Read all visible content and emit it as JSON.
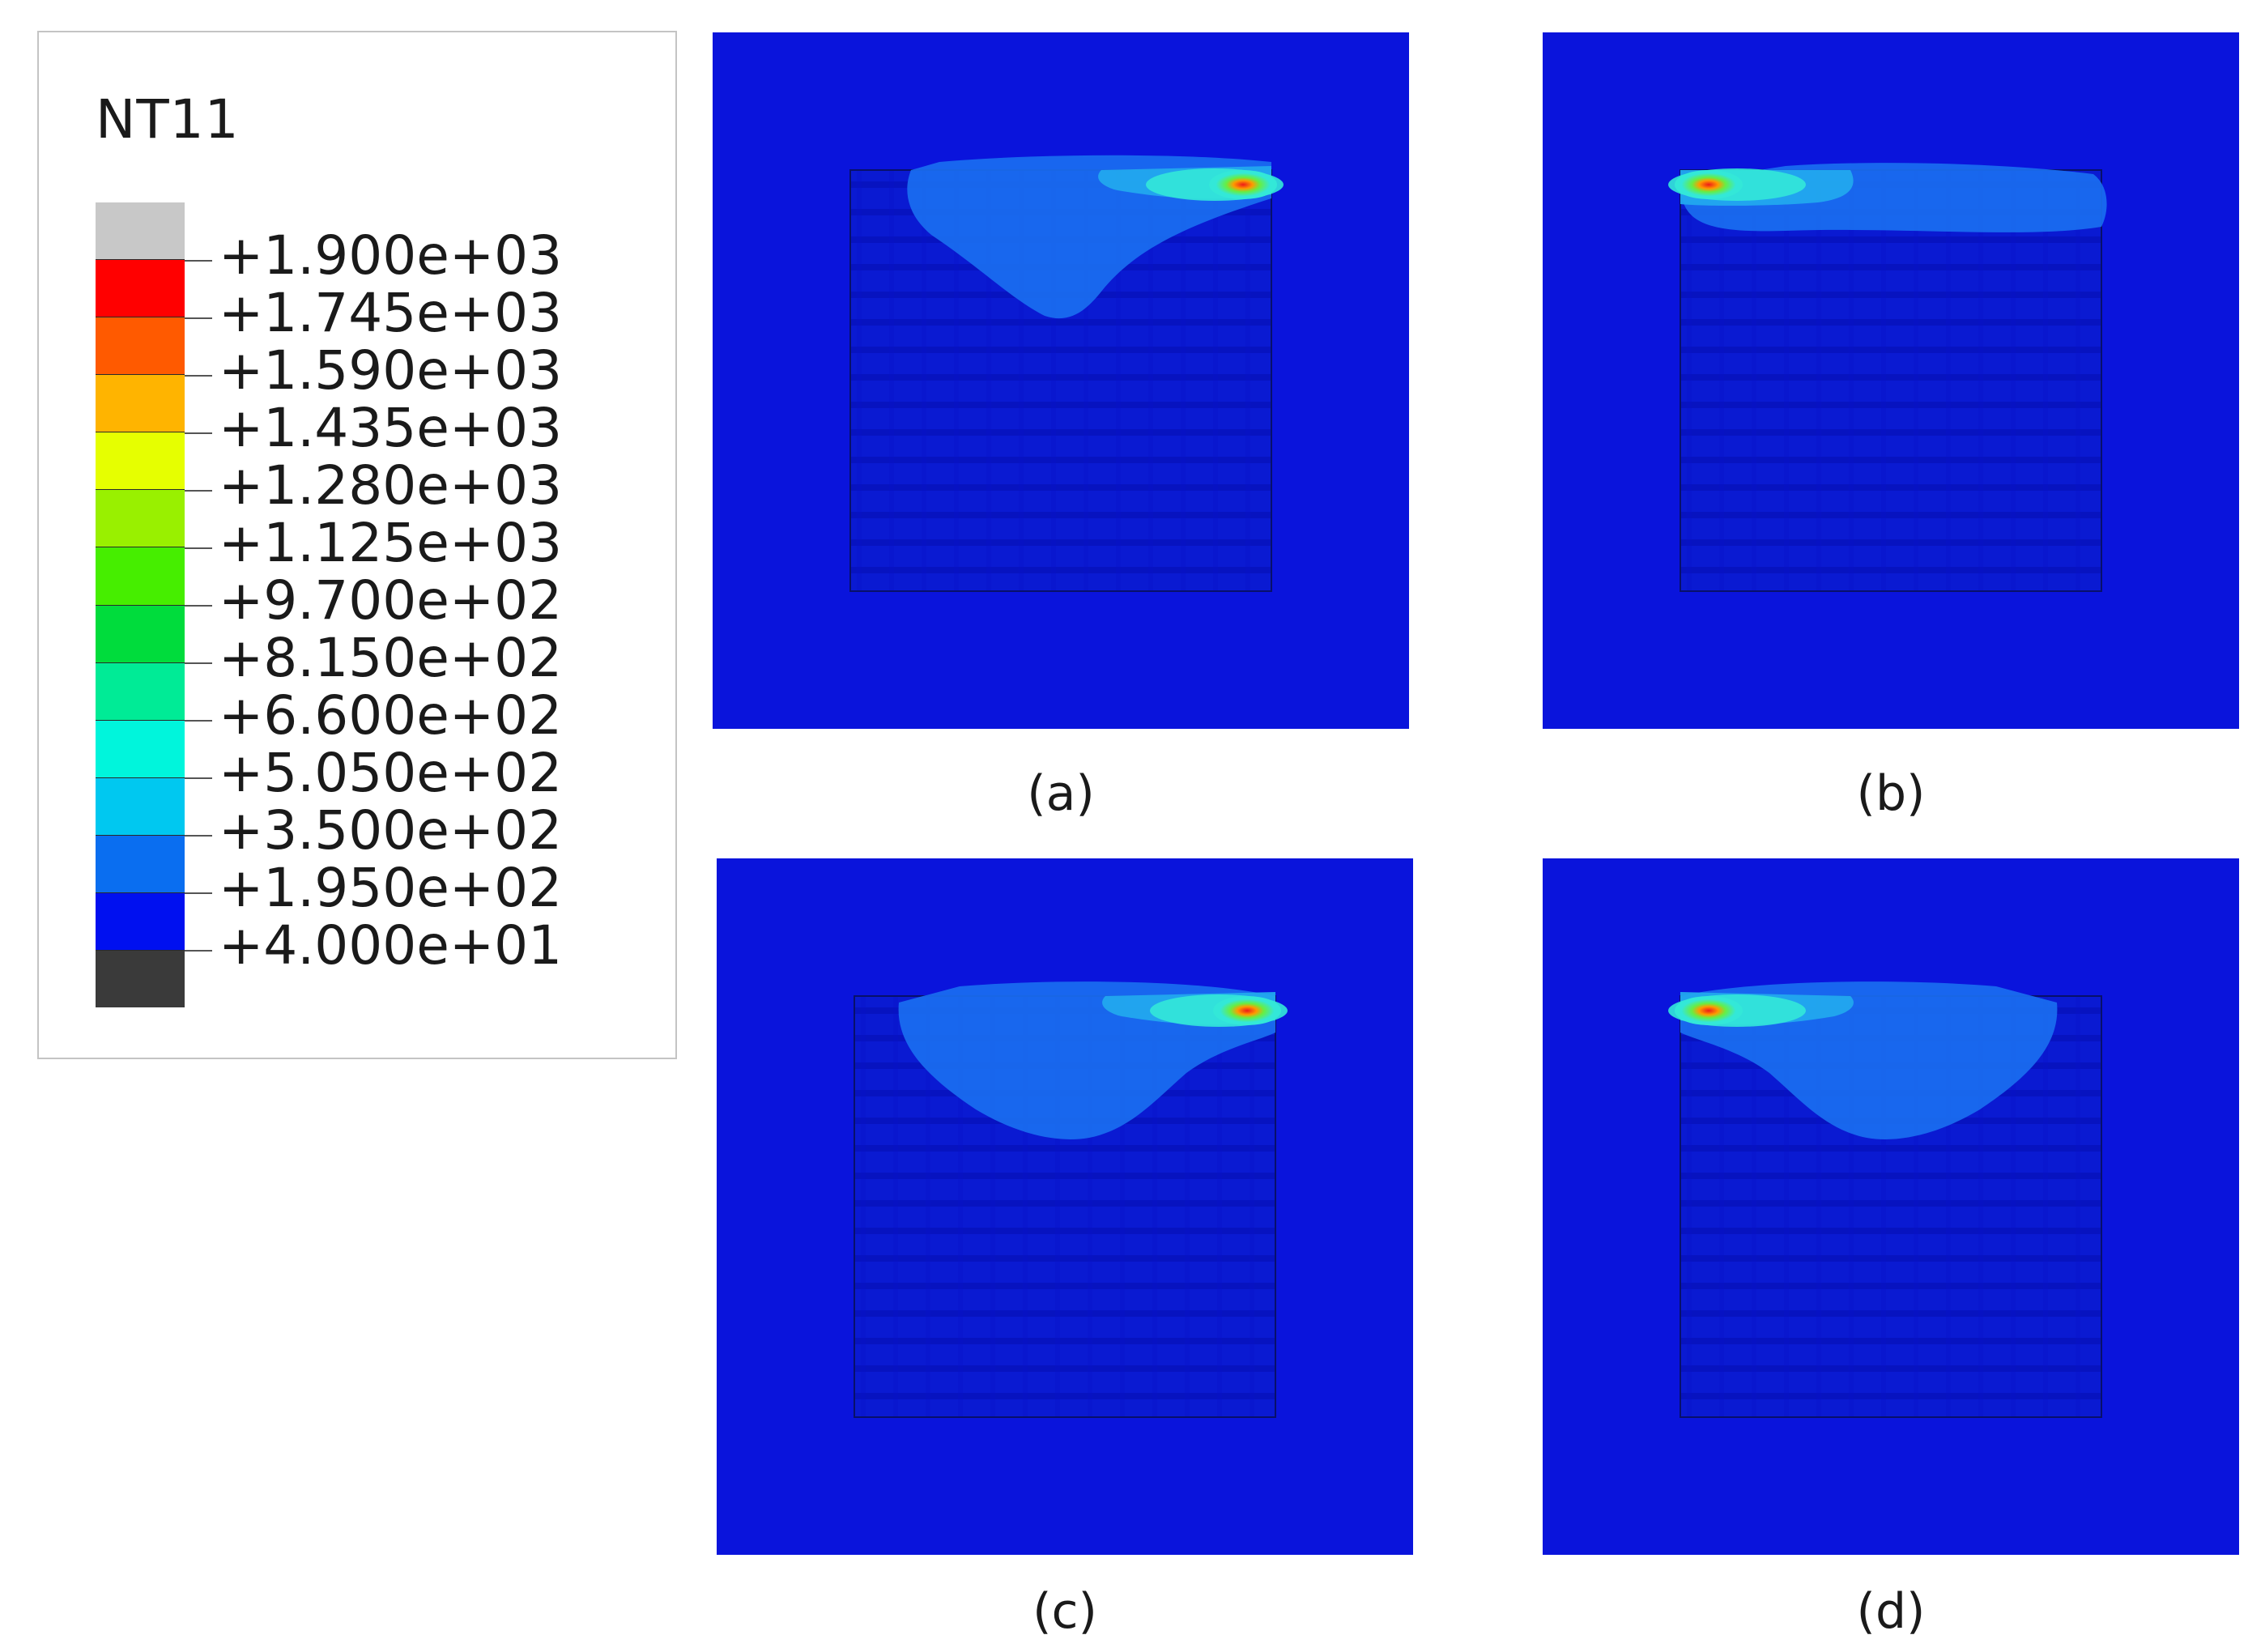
{
  "legend": {
    "title": "NT11",
    "bands": [
      "#c8c8c8",
      "#ff0000",
      "#ff5a00",
      "#ffb400",
      "#e6ff00",
      "#99f000",
      "#46ee00",
      "#00dc3c",
      "#00eb96",
      "#00f5dc",
      "#00c8f0",
      "#0a6ef0",
      "#0010f0",
      "#3a3a3a"
    ],
    "ticks": [
      "+1.900e+03",
      "+1.745e+03",
      "+1.590e+03",
      "+1.435e+03",
      "+1.280e+03",
      "+1.125e+03",
      "+9.700e+02",
      "+8.150e+02",
      "+6.600e+02",
      "+5.050e+02",
      "+3.500e+02",
      "+1.950e+02",
      "+4.000e+01"
    ]
  },
  "panels": [
    {
      "id": "a",
      "caption": "(a)",
      "hotspot": "right"
    },
    {
      "id": "b",
      "caption": "(b)",
      "hotspot": "left"
    },
    {
      "id": "c",
      "caption": "(c)",
      "hotspot": "right"
    },
    {
      "id": "d",
      "caption": "(d)",
      "hotspot": "left"
    }
  ],
  "colors": {
    "substrate": "#0a14dc",
    "part": "#0a1ad2",
    "melt_pool": "#1a6ef0",
    "warm": "#22a8ee",
    "hot": "#33e8d8",
    "peak_green": "#66ee44",
    "peak_red": "#ee1a1a"
  }
}
